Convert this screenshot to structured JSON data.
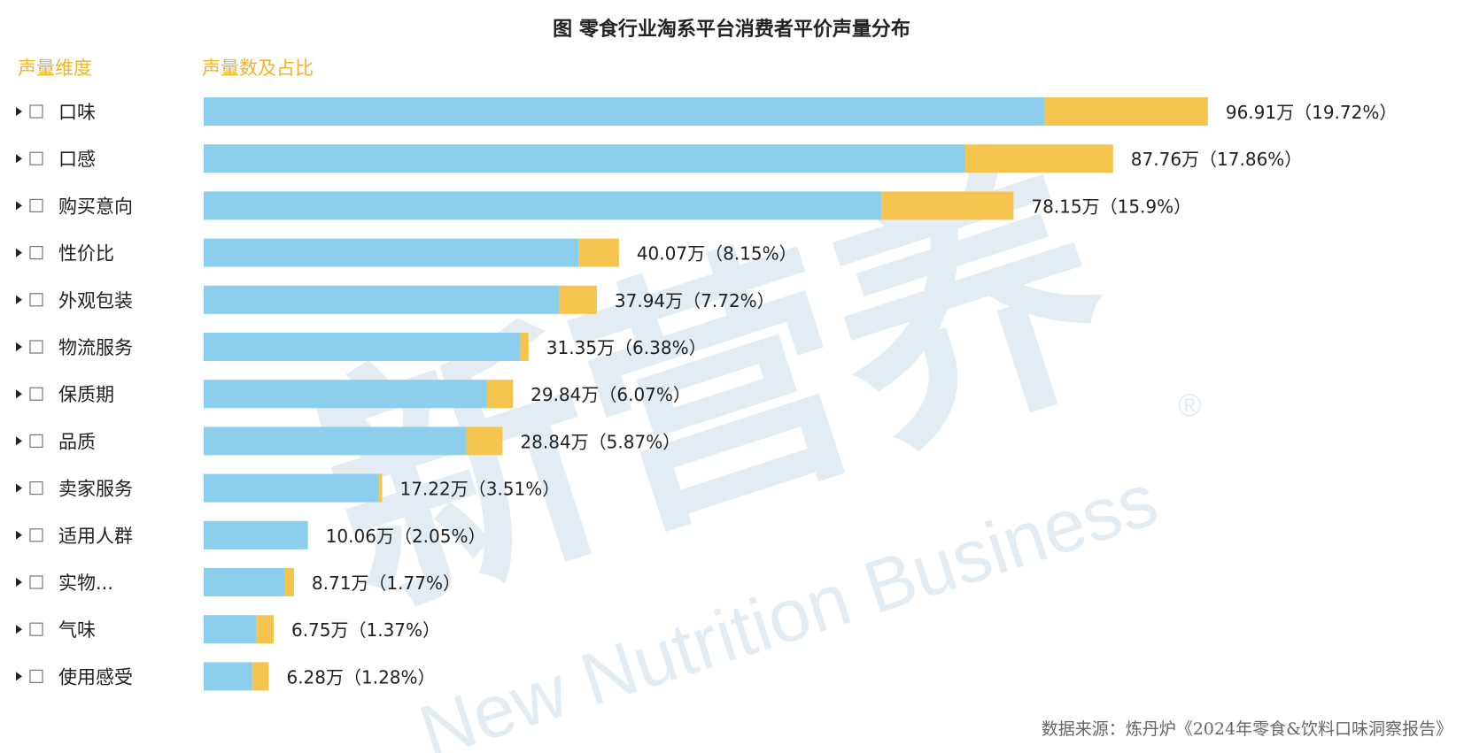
{
  "title": "图 零食行业淘系平台消费者平价声量分布",
  "header": {
    "dimension_label": "声量维度",
    "value_label": "声量数及占比"
  },
  "source": "数据来源：炼丹炉《2024年零食&饮料口味洞察报告》",
  "watermark": {
    "cn": "新营养",
    "en": "New Nutrition Business",
    "mark": "®"
  },
  "colors": {
    "base": "#8ccfec",
    "highlight": "#f5c44f",
    "header": "#f0b429"
  },
  "row_icons": {
    "expand": "triangle-right-icon",
    "checkbox": "checkbox-icon"
  },
  "chart_data": {
    "type": "bar",
    "orientation": "horizontal",
    "stacked": true,
    "title": "图 零食行业淘系平台消费者平价声量分布",
    "categories": [
      "口味",
      "口感",
      "购买意向",
      "性价比",
      "外观包装",
      "物流服务",
      "保质期",
      "品质",
      "卖家服务",
      "适用人群",
      "实物...",
      "气味",
      "使用感受"
    ],
    "values": [
      96.91,
      87.76,
      78.15,
      40.07,
      37.94,
      31.35,
      29.84,
      28.84,
      17.22,
      10.06,
      8.71,
      6.75,
      6.28
    ],
    "highlight_values": [
      15.75,
      14.25,
      12.75,
      3.9,
      3.6,
      0.8,
      2.5,
      3.5,
      0.3,
      0,
      0.9,
      1.7,
      1.6
    ],
    "labels": [
      "96.91万（19.72%）",
      "87.76万（17.86%）",
      "78.15万（15.9%）",
      "40.07万（8.15%）",
      "37.94万（7.72%）",
      "31.35万（6.38%）",
      "29.84万（6.07%）",
      "28.84万（5.87%）",
      "17.22万（3.51%）",
      "10.06万（2.05%）",
      "8.71万（1.77%）",
      "6.75万（1.37%）",
      "6.28万（1.28%）"
    ],
    "xlim": [
      0,
      100
    ],
    "grid": false,
    "legend": "none"
  }
}
